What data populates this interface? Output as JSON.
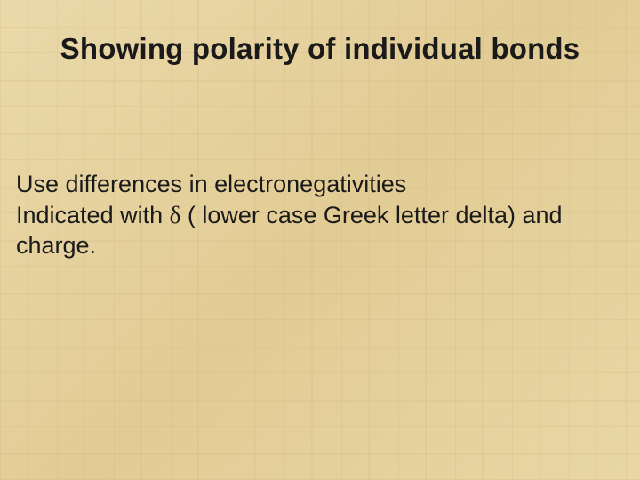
{
  "slide": {
    "title": "Showing polarity of individual bonds",
    "body_line1": "Use differences in electronegativities",
    "body_line2_prefix": "Indicated with ",
    "body_line2_delta": "δ",
    "body_line2_suffix": " ( lower case Greek letter delta) and charge.",
    "background_base": "#e6d4a3",
    "text_color": "#1a1a1a",
    "title_fontsize": 33,
    "body_fontsize": 27
  }
}
